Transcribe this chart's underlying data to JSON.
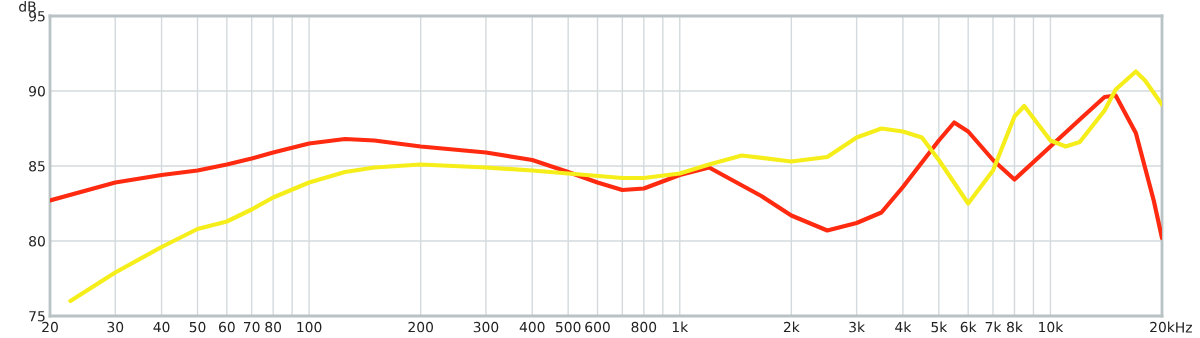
{
  "chart_data": {
    "type": "line",
    "ylabel": "dB",
    "xlabel": "Hz",
    "log": "x",
    "grid": true,
    "marker": "none",
    "line_style": "solid",
    "xlim": [
      20,
      20000
    ],
    "ylim": [
      75,
      95
    ],
    "xticks": [
      20,
      30,
      40,
      50,
      60,
      70,
      80,
      {
        "value": 90,
        "label": null
      },
      100,
      200,
      300,
      400,
      500,
      600,
      {
        "value": 700,
        "label": null
      },
      800,
      {
        "value": 900,
        "label": null
      },
      {
        "value": 1000,
        "label": "1k"
      },
      {
        "value": 2000,
        "label": "2k"
      },
      {
        "value": 3000,
        "label": "3k"
      },
      {
        "value": 4000,
        "label": "4k"
      },
      {
        "value": 5000,
        "label": "5k"
      },
      {
        "value": 6000,
        "label": "6k"
      },
      {
        "value": 7000,
        "label": "7k"
      },
      {
        "value": 8000,
        "label": "8k"
      },
      {
        "value": 9000,
        "label": null
      },
      {
        "value": 10000,
        "label": "10k"
      },
      {
        "value": 20000,
        "label": "20k"
      }
    ],
    "yticks": [
      75,
      80,
      85,
      90,
      95
    ],
    "series": [
      {
        "color": "#ff2a10",
        "x": [
          20,
          30,
          40,
          50,
          60,
          70,
          80,
          100,
          125,
          150,
          200,
          300,
          400,
          500,
          600,
          700,
          800,
          1000,
          1200,
          1660,
          2000,
          2500,
          3000,
          3500,
          4000,
          5000,
          5500,
          6000,
          7000,
          8000,
          10000,
          12000,
          14000,
          15000,
          17000,
          19000,
          20000
        ],
        "values": [
          82.7,
          83.9,
          84.4,
          84.7,
          85.1,
          85.5,
          85.9,
          86.5,
          86.8,
          86.7,
          86.3,
          85.9,
          85.4,
          84.6,
          83.9,
          83.4,
          83.5,
          84.4,
          84.9,
          83.0,
          81.7,
          80.7,
          81.2,
          81.9,
          83.6,
          86.7,
          87.9,
          87.3,
          85.4,
          84.1,
          86.3,
          88.1,
          89.6,
          89.7,
          87.2,
          82.7,
          80.2
        ]
      },
      {
        "color": "#f5ee1a",
        "x": [
          22.7,
          30,
          40,
          50,
          60,
          70,
          80,
          100,
          125,
          150,
          200,
          300,
          400,
          500,
          700,
          800,
          1000,
          1200,
          1470,
          2000,
          2500,
          3000,
          3500,
          4000,
          4500,
          5000,
          6000,
          7000,
          8000,
          8500,
          10000,
          11000,
          12000,
          14000,
          15000,
          17000,
          18000,
          20000
        ],
        "values": [
          76.0,
          77.9,
          79.6,
          80.8,
          81.3,
          82.1,
          82.9,
          83.9,
          84.6,
          84.9,
          85.1,
          84.9,
          84.7,
          84.5,
          84.2,
          84.2,
          84.5,
          85.1,
          85.7,
          85.3,
          85.6,
          86.9,
          87.5,
          87.3,
          86.9,
          85.4,
          82.5,
          84.7,
          88.3,
          89.0,
          86.7,
          86.3,
          86.6,
          88.7,
          90.1,
          91.3,
          90.7,
          89.1
        ]
      }
    ]
  }
}
